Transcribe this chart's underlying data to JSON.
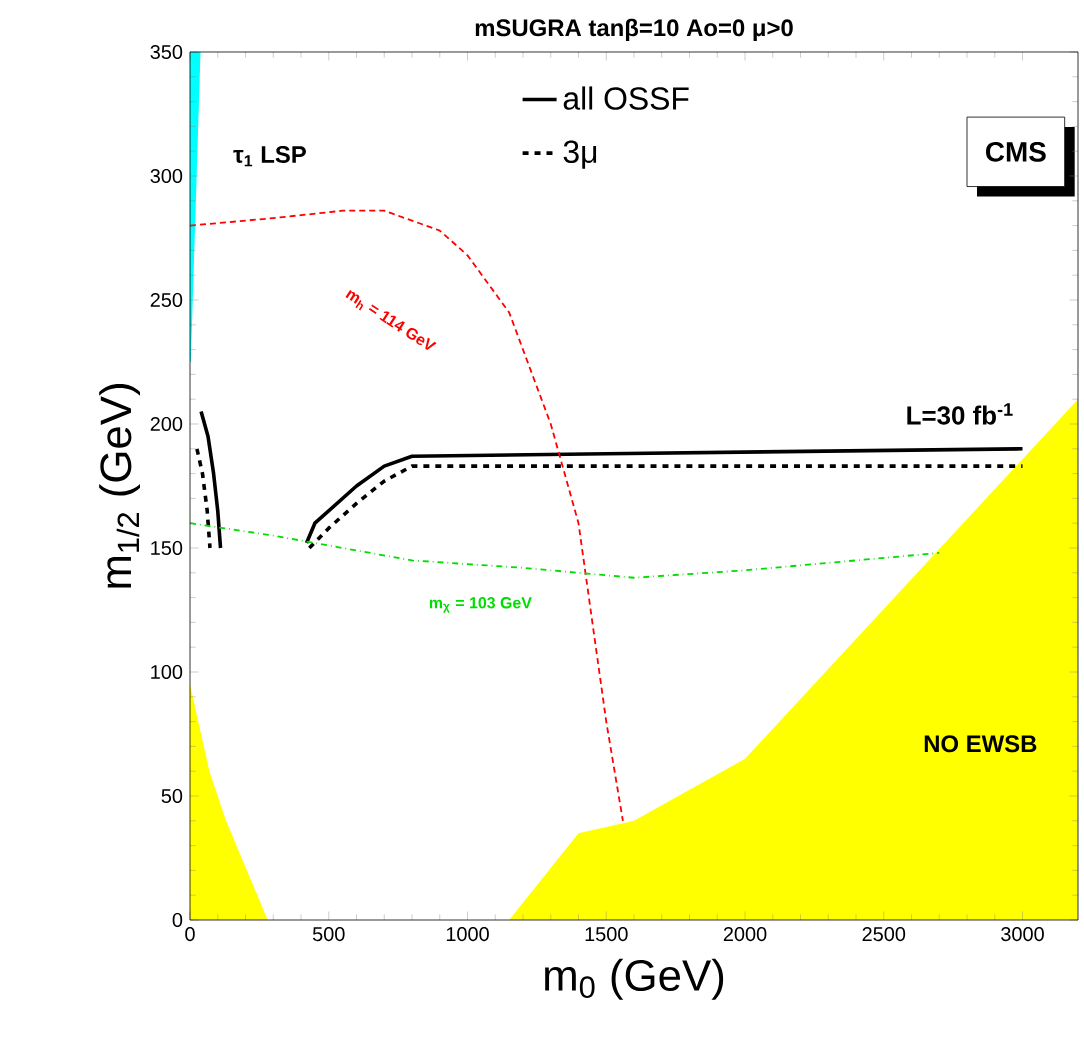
{
  "chart_data": {
    "type": "line",
    "title": "mSUGRA tanβ=10  Ao=0  μ>0",
    "xlabel": "m$_{0}$ (GeV)",
    "ylabel": "m$_{1/2}$ (GeV)",
    "xlim": [
      0,
      3200
    ],
    "ylim": [
      0,
      350
    ],
    "xticks": [
      0,
      500,
      1000,
      1500,
      2000,
      2500,
      3000
    ],
    "yticks": [
      0,
      50,
      100,
      150,
      200,
      250,
      300,
      350
    ],
    "legend": "top",
    "series": [
      {
        "type": "line",
        "color": "#00ffff",
        "line_style": "solid",
        "x": [
          0,
          35
        ],
        "values": [
          350,
          350
        ],
        "lower": [
          225,
          350
        ],
        "upper": [
          350,
          350
        ]
      },
      {
        "type": "area",
        "color": "#ffff00",
        "x": [
          0,
          70,
          130,
          280
        ],
        "values": [
          95,
          60,
          40,
          0
        ]
      },
      {
        "type": "area",
        "color": "#ffff00",
        "x": [
          1150,
          1400,
          1600,
          2000,
          3200
        ],
        "values": [
          0,
          35,
          40,
          65,
          210
        ]
      },
      {
        "name": "all OSSF",
        "color": "#000000",
        "line_style": "solid",
        "x": [
          40,
          65,
          85,
          100,
          110,
          null,
          420,
          450,
          500,
          550,
          600,
          700,
          800,
          1500,
          3000
        ],
        "values": [
          205,
          195,
          180,
          165,
          150,
          null,
          152,
          160,
          165,
          170,
          175,
          183,
          187,
          188,
          190
        ]
      },
      {
        "name": "3μ",
        "color": "#000000",
        "line_style": "dashed",
        "x": [
          25,
          45,
          62,
          72,
          null,
          430,
          500,
          600,
          700,
          800,
          3000
        ],
        "values": [
          190,
          180,
          165,
          150,
          null,
          150,
          158,
          168,
          177,
          183,
          183
        ]
      },
      {
        "color": "#ff0000",
        "line_style": "dashed",
        "x": [
          0,
          300,
          550,
          700,
          900,
          1000,
          1150,
          1300,
          1400,
          1450,
          1500,
          1560
        ],
        "values": [
          280,
          283,
          286,
          286,
          278,
          268,
          245,
          200,
          160,
          120,
          80,
          40
        ]
      },
      {
        "color": "#00dd00",
        "line_style": "dotted",
        "x": [
          0,
          300,
          800,
          1200,
          1600,
          2000,
          2700
        ],
        "values": [
          160,
          155,
          145,
          142,
          138,
          141,
          148
        ]
      }
    ],
    "annotations": [
      "CMS",
      "τ$_{1}$ LSP",
      "m$_{h}$ = 114 GeV",
      "m$_{χ}$ = 103 GeV",
      "L=30 fb$^{-1}$",
      "NO EWSB"
    ]
  }
}
